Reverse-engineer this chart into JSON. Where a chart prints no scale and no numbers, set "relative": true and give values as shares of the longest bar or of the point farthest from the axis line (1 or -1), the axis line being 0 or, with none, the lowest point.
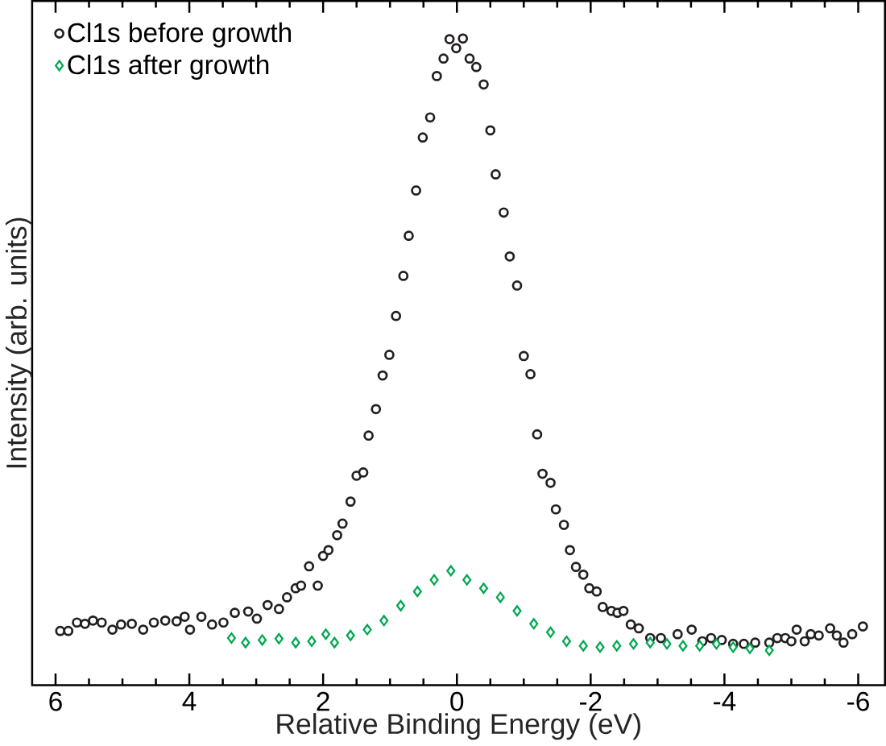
{
  "chart_data": {
    "type": "scatter",
    "xlabel": "Relative Binding Energy (eV)",
    "ylabel": "Intensity (arb. units)",
    "relative": true,
    "tick_labels": "x",
    "legend": "top left",
    "grid": false,
    "xlim": [
      6.35,
      -6.4
    ],
    "xticks": [
      6,
      4,
      2,
      0,
      -2,
      -4,
      -6
    ],
    "series": [
      {
        "name": "Cl1s before growth",
        "color": "#231f20",
        "marker": "circle",
        "x": [
          5.93,
          5.81,
          5.68,
          5.56,
          5.44,
          5.31,
          5.15,
          5.02,
          4.86,
          4.69,
          4.53,
          4.36,
          4.19,
          4.07,
          3.99,
          3.82,
          3.66,
          3.49,
          3.32,
          3.12,
          2.99,
          2.83,
          2.66,
          2.54,
          2.41,
          2.33,
          2.21,
          2.08,
          2.0,
          1.92,
          1.79,
          1.71,
          1.59,
          1.5,
          1.4,
          1.32,
          1.21,
          1.11,
          1.01,
          0.91,
          0.8,
          0.72,
          0.61,
          0.51,
          0.4,
          0.3,
          0.2,
          0.11,
          0.01,
          -0.09,
          -0.19,
          -0.29,
          -0.4,
          -0.5,
          -0.58,
          -0.7,
          -0.79,
          -0.9,
          -1.0,
          -1.1,
          -1.2,
          -1.28,
          -1.4,
          -1.48,
          -1.6,
          -1.69,
          -1.78,
          -1.89,
          -1.98,
          -2.09,
          -2.18,
          -2.31,
          -2.4,
          -2.49,
          -2.6,
          -2.72,
          -2.89,
          -3.05,
          -3.3,
          -3.51,
          -3.67,
          -3.8,
          -3.96,
          -4.13,
          -4.29,
          -4.46,
          -4.67,
          -4.79,
          -4.91,
          -5.0,
          -5.08,
          -5.2,
          -5.29,
          -5.41,
          -5.58,
          -5.68,
          -5.78,
          -5.91,
          -6.07
        ],
        "values": [
          0.084,
          0.084,
          0.097,
          0.095,
          0.1,
          0.097,
          0.086,
          0.094,
          0.095,
          0.086,
          0.097,
          0.1,
          0.099,
          0.106,
          0.086,
          0.106,
          0.094,
          0.097,
          0.112,
          0.114,
          0.103,
          0.124,
          0.118,
          0.136,
          0.15,
          0.154,
          0.184,
          0.154,
          0.2,
          0.209,
          0.232,
          0.25,
          0.284,
          0.324,
          0.329,
          0.386,
          0.427,
          0.479,
          0.511,
          0.571,
          0.633,
          0.695,
          0.765,
          0.847,
          0.878,
          0.942,
          0.969,
          0.999,
          0.985,
          1.0,
          0.969,
          0.956,
          0.929,
          0.858,
          0.79,
          0.731,
          0.663,
          0.618,
          0.509,
          0.481,
          0.388,
          0.327,
          0.313,
          0.272,
          0.248,
          0.209,
          0.183,
          0.171,
          0.15,
          0.145,
          0.121,
          0.115,
          0.112,
          0.115,
          0.094,
          0.088,
          0.073,
          0.073,
          0.079,
          0.086,
          0.068,
          0.073,
          0.07,
          0.064,
          0.064,
          0.066,
          0.066,
          0.073,
          0.073,
          0.068,
          0.086,
          0.068,
          0.079,
          0.077,
          0.088,
          0.077,
          0.066,
          0.079,
          0.091
        ]
      },
      {
        "name": "Cl1s after growth",
        "color": "#00a84f",
        "marker": "diamond",
        "x": [
          3.37,
          3.16,
          2.91,
          2.66,
          2.41,
          2.17,
          1.96,
          1.83,
          1.59,
          1.34,
          1.09,
          0.84,
          0.59,
          0.34,
          0.09,
          -0.15,
          -0.4,
          -0.65,
          -0.9,
          -1.15,
          -1.4,
          -1.64,
          -1.89,
          -2.14,
          -2.39,
          -2.64,
          -2.89,
          -3.14,
          -3.38,
          -3.63,
          -3.88,
          -4.13,
          -4.38,
          -4.67
        ],
        "values": [
          0.073,
          0.066,
          0.07,
          0.072,
          0.066,
          0.068,
          0.079,
          0.066,
          0.077,
          0.086,
          0.1,
          0.123,
          0.145,
          0.163,
          0.177,
          0.163,
          0.15,
          0.136,
          0.115,
          0.095,
          0.082,
          0.068,
          0.061,
          0.059,
          0.061,
          0.064,
          0.066,
          0.064,
          0.061,
          0.061,
          0.064,
          0.059,
          0.057,
          0.054
        ]
      }
    ]
  }
}
